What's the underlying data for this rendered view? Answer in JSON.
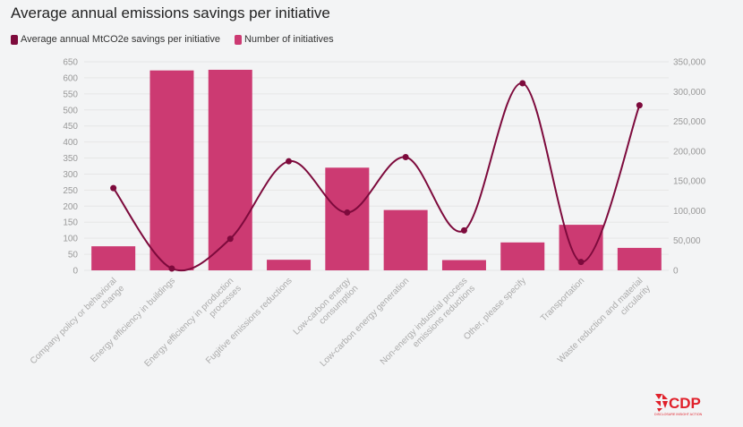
{
  "title": "Average annual emissions savings per initiative",
  "legend": {
    "line_label": "Average annual MtCO2e savings per initiative",
    "bar_label": "Number of initiatives"
  },
  "colors": {
    "bar": "#cc3a72",
    "line": "#7d0a3c",
    "grid": "#e6e6e6",
    "background": "#f3f4f5"
  },
  "logo": {
    "name": "CDP",
    "tagline": "DISCLOSURE INSIGHT ACTION"
  },
  "chart_data": {
    "type": "bar",
    "categories": [
      [
        "Company policy or behavioral",
        "change"
      ],
      [
        "Energy efficiency in buildings"
      ],
      [
        "Energy efficiency in production",
        "processes"
      ],
      [
        "Fugitive emissions reductions"
      ],
      [
        "Low-carbon energy",
        "consumption"
      ],
      [
        "Low-carbon energy generation"
      ],
      [
        "Non-energy industrial process",
        "emissions reductions"
      ],
      [
        "Other, please specify"
      ],
      [
        "Transportation"
      ],
      [
        "Waste reduction and material",
        "circularity"
      ]
    ],
    "series": [
      {
        "name": "Number of initiatives",
        "type": "bar",
        "axis": "left",
        "values": [
          75,
          623,
          625,
          33,
          320,
          188,
          32,
          87,
          142,
          70
        ]
      },
      {
        "name": "Average annual MtCO2e savings per initiative",
        "type": "line",
        "axis": "right",
        "values": [
          138000,
          3000,
          53000,
          183000,
          97000,
          190000,
          67000,
          314000,
          14000,
          277000
        ]
      }
    ],
    "y_left": {
      "min": 0,
      "max": 650,
      "step": 50,
      "ticks": [
        "0",
        "50",
        "100",
        "150",
        "200",
        "250",
        "300",
        "350",
        "400",
        "450",
        "500",
        "550",
        "600",
        "650"
      ]
    },
    "y_right": {
      "min": 0,
      "max": 350000,
      "step": 50000,
      "ticks": [
        "0",
        "50,000",
        "100,000",
        "150,000",
        "200,000",
        "250,000",
        "300,000",
        "350,000"
      ]
    },
    "grid": true,
    "legend_position": "top-left"
  }
}
